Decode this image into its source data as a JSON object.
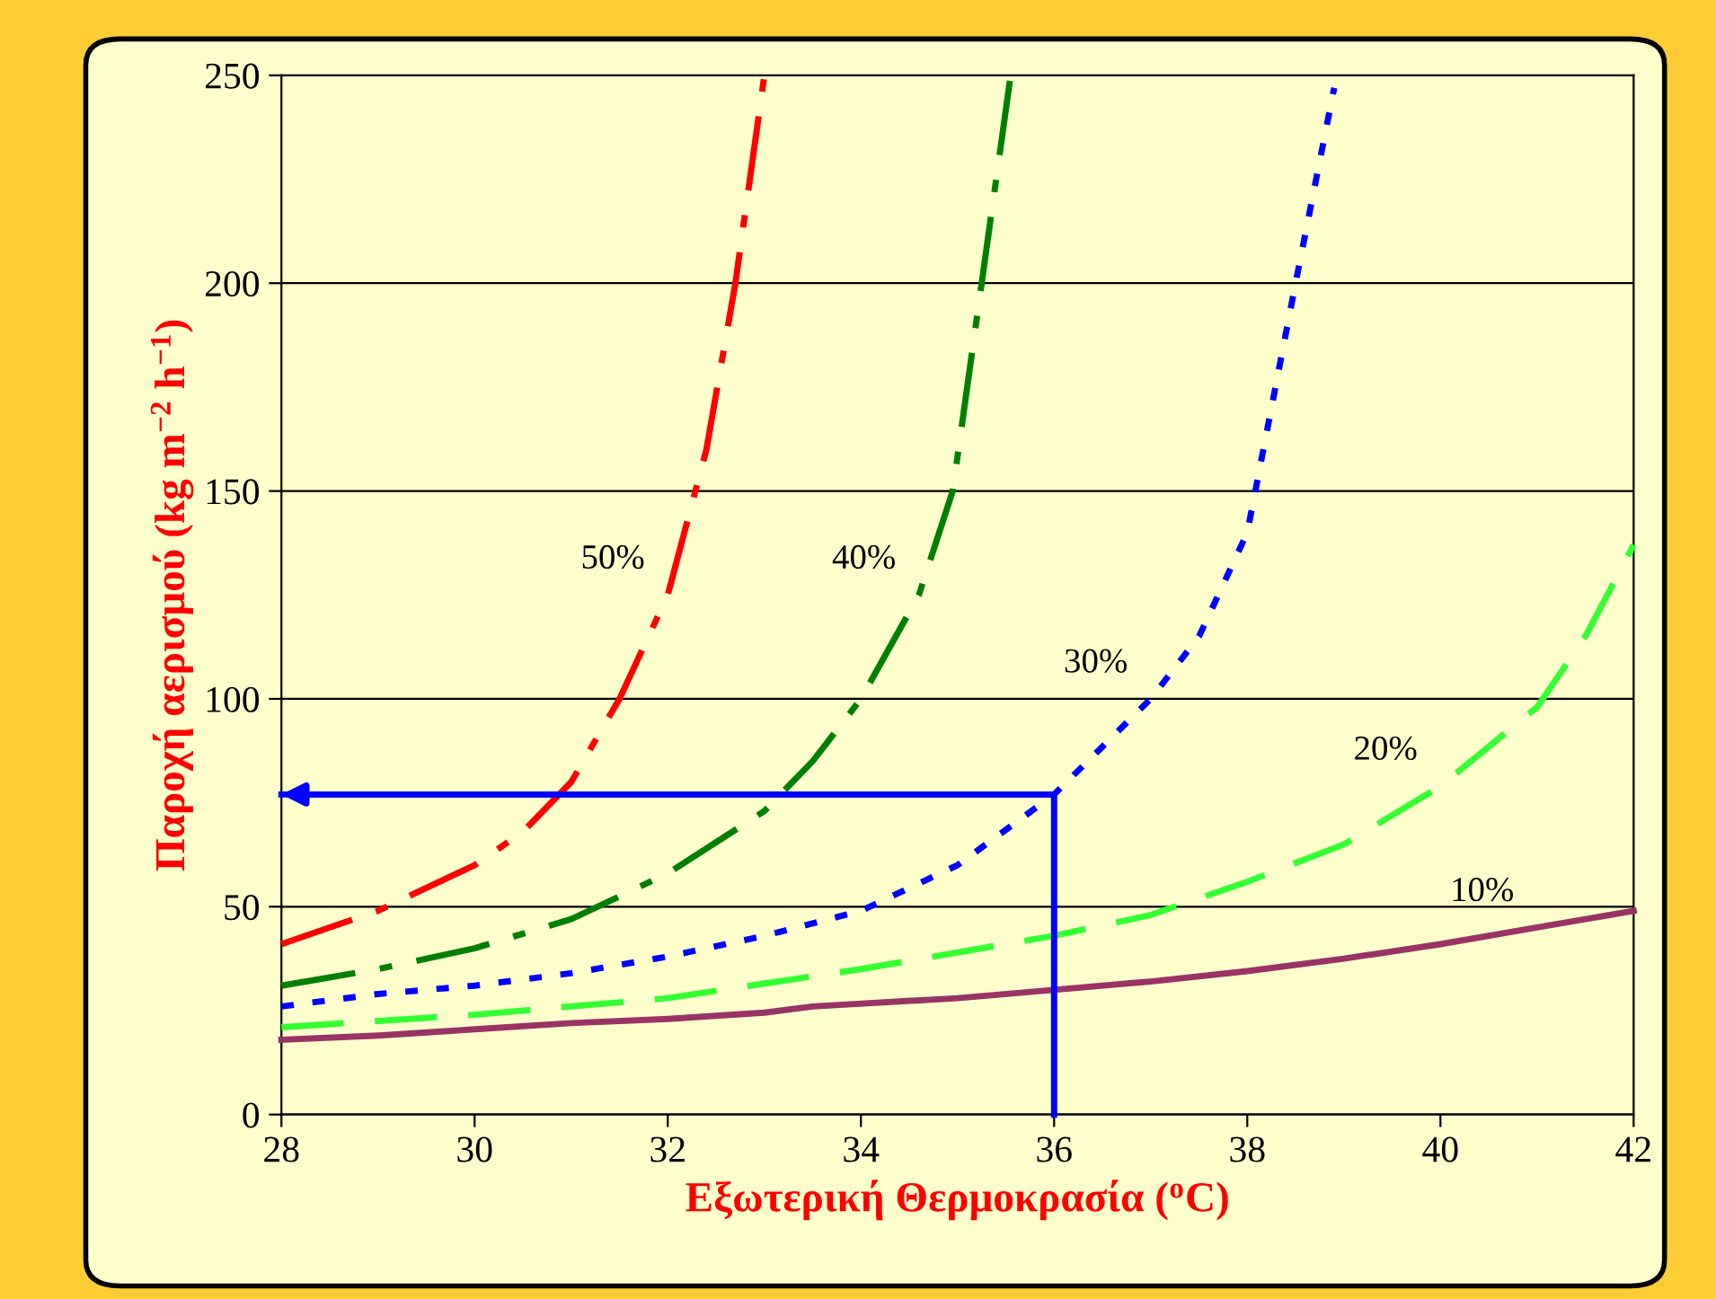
{
  "chart_data": {
    "type": "line",
    "xlabel": "Εξωτερική Θερμοκρασία ($^{o}$C)",
    "ylabel": "Παροχή αερισμού (kg m$^{−2}$ h$^{−1}$)",
    "xlim": [
      28,
      42
    ],
    "xticks": [
      28,
      30,
      32,
      34,
      36,
      38,
      40,
      42
    ],
    "ylim": [
      0,
      250
    ],
    "yticks": [
      0,
      50,
      100,
      150,
      200,
      250
    ],
    "grid": "y",
    "legend": false,
    "series": [
      {
        "name": "50%",
        "color": "#ff0000",
        "line_style": "dashdot",
        "x": [
          28,
          29,
          30,
          30.5,
          31,
          31.5,
          32,
          32.4,
          32.7,
          33
        ],
        "values": [
          41,
          49,
          60,
          68,
          80,
          100,
          125,
          160,
          200,
          250
        ]
      },
      {
        "name": "40%",
        "color": "#008000",
        "line_style": "dashdot",
        "x": [
          28,
          29,
          30,
          31,
          32,
          33,
          33.5,
          34,
          34.6,
          34.95,
          35.25,
          35.55
        ],
        "values": [
          31,
          35,
          40,
          47,
          58,
          73,
          85,
          100,
          125,
          150,
          200,
          250
        ]
      },
      {
        "name": "30%",
        "color": "#0000ff",
        "line_style": "dotted",
        "x": [
          28,
          29,
          30,
          31,
          32,
          33,
          34,
          35,
          36,
          37,
          37.5,
          38,
          38.5,
          38.9
        ],
        "values": [
          26,
          29,
          31,
          34,
          38,
          43,
          49,
          60,
          77,
          100,
          115,
          140,
          200,
          247
        ]
      },
      {
        "name": "20%",
        "color": "#33ff33",
        "line_style": "dashed",
        "x": [
          28,
          30,
          32,
          34,
          36,
          37,
          38,
          39,
          40,
          41,
          41.5,
          42
        ],
        "values": [
          21,
          24,
          28,
          35,
          43,
          48,
          56,
          65,
          79,
          98,
          115,
          137
        ]
      },
      {
        "name": "10%",
        "color": "#993366",
        "line_style": "solid",
        "x": [
          28,
          29,
          30,
          31,
          32,
          33,
          33.5,
          35,
          36,
          37,
          38,
          39,
          40,
          41,
          42
        ],
        "values": [
          18,
          19,
          20.5,
          22,
          23,
          24.5,
          26,
          28,
          30,
          32,
          34.5,
          37.5,
          41,
          45,
          49
        ]
      },
      {
        "color": "#0000ff",
        "line_style": "solid",
        "x": [
          36,
          36,
          28
        ],
        "values": [
          0,
          77,
          77
        ]
      }
    ]
  }
}
